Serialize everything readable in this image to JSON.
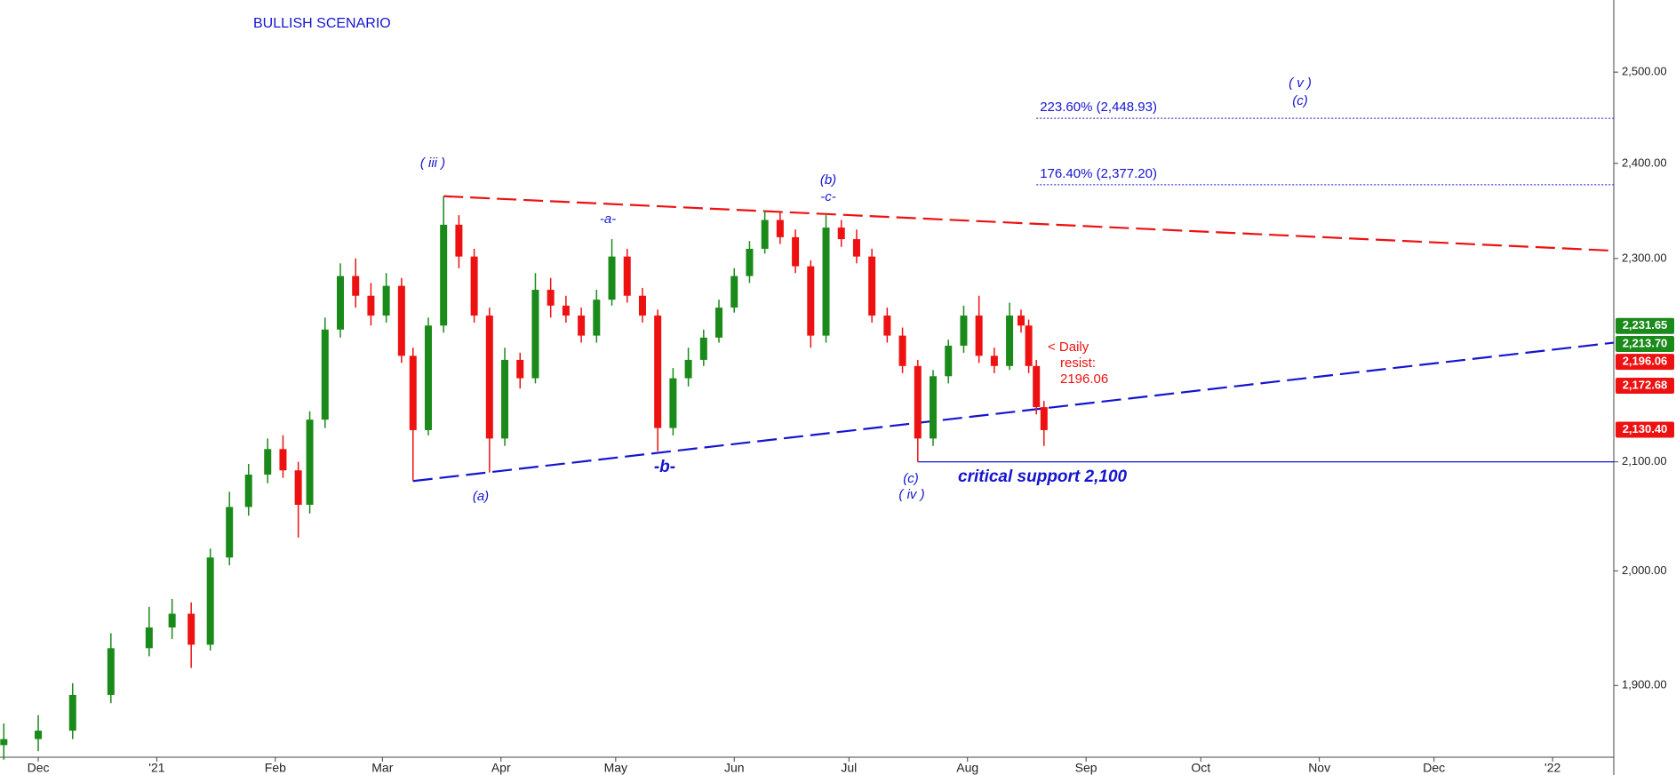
{
  "chart_data": {
    "type": "candlestick",
    "title": "BULLISH SCENARIO",
    "log_scale": true,
    "xlim": [
      -10,
      412
    ],
    "xticks": [
      {
        "value": 0,
        "label": "Dec"
      },
      {
        "value": 31,
        "label": "'21"
      },
      {
        "value": 62,
        "label": "Feb"
      },
      {
        "value": 90,
        "label": "Mar"
      },
      {
        "value": 121,
        "label": "Apr"
      },
      {
        "value": 151,
        "label": "May"
      },
      {
        "value": 182,
        "label": "Jun"
      },
      {
        "value": 212,
        "label": "Jul"
      },
      {
        "value": 243,
        "label": "Aug"
      },
      {
        "value": 274,
        "label": "Sep"
      },
      {
        "value": 304,
        "label": "Oct"
      },
      {
        "value": 335,
        "label": "Nov"
      },
      {
        "value": 365,
        "label": "Dec"
      },
      {
        "value": 396,
        "label": "'22"
      }
    ],
    "ylim": [
      1840,
      2582
    ],
    "yticks": [
      {
        "value": 1900,
        "label": "1,900.00"
      },
      {
        "value": 2000,
        "label": "2,000.00"
      },
      {
        "value": 2100,
        "label": "2,100.00"
      },
      {
        "value": 2300,
        "label": "2,300.00"
      },
      {
        "value": 2400,
        "label": "2,400.00"
      },
      {
        "value": 2500,
        "label": "2,500.00"
      }
    ],
    "up_color": "#1a8a1a",
    "down_color": "#ee1111",
    "x": [
      -9,
      0,
      9,
      19,
      29,
      35,
      40,
      45,
      50,
      55,
      60,
      64,
      68,
      71,
      75,
      79,
      83,
      87,
      91,
      95,
      98,
      102,
      106,
      110,
      114,
      118,
      122,
      126,
      130,
      134,
      138,
      142,
      146,
      150,
      154,
      158,
      162,
      166,
      170,
      174,
      178,
      182,
      186,
      190,
      194,
      198,
      202,
      206,
      210,
      214,
      218,
      222,
      226,
      230,
      234,
      238,
      242,
      246,
      250,
      254,
      257,
      259,
      261,
      263
    ],
    "open": [
      1850,
      1855,
      1862,
      1892,
      1932,
      1950,
      1962,
      1935,
      2012,
      2058,
      2088,
      2112,
      2092,
      2060,
      2140,
      2228,
      2282,
      2262,
      2242,
      2272,
      2202,
      2130,
      2232,
      2335,
      2302,
      2242,
      2122,
      2198,
      2180,
      2268,
      2252,
      2242,
      2222,
      2258,
      2302,
      2262,
      2242,
      2132,
      2180,
      2198,
      2220,
      2250,
      2282,
      2310,
      2340,
      2322,
      2292,
      2222,
      2332,
      2320,
      2302,
      2242,
      2222,
      2192,
      2122,
      2182,
      2212,
      2242,
      2202,
      2192,
      2242,
      2232,
      2192,
      2152
    ],
    "high": [
      1868,
      1875,
      1902,
      1945,
      1968,
      1975,
      1972,
      2020,
      2072,
      2098,
      2122,
      2125,
      2100,
      2148,
      2240,
      2295,
      2300,
      2275,
      2285,
      2280,
      2210,
      2240,
      2365,
      2345,
      2310,
      2250,
      2210,
      2205,
      2285,
      2280,
      2262,
      2250,
      2268,
      2320,
      2310,
      2270,
      2248,
      2190,
      2210,
      2228,
      2258,
      2290,
      2318,
      2350,
      2348,
      2330,
      2298,
      2345,
      2340,
      2330,
      2310,
      2250,
      2230,
      2198,
      2188,
      2218,
      2252,
      2262,
      2210,
      2255,
      2248,
      2238,
      2198,
      2158
    ],
    "low": [
      1838,
      1845,
      1855,
      1885,
      1925,
      1940,
      1915,
      1930,
      2005,
      2050,
      2080,
      2085,
      2030,
      2052,
      2132,
      2220,
      2250,
      2232,
      2235,
      2195,
      2082,
      2125,
      2225,
      2290,
      2235,
      2090,
      2115,
      2170,
      2175,
      2240,
      2235,
      2215,
      2215,
      2252,
      2255,
      2235,
      2110,
      2125,
      2172,
      2192,
      2215,
      2245,
      2275,
      2305,
      2315,
      2285,
      2210,
      2215,
      2312,
      2295,
      2235,
      2215,
      2185,
      2100,
      2115,
      2175,
      2205,
      2195,
      2185,
      2188,
      2225,
      2185,
      2145,
      2115
    ],
    "close": [
      1855,
      1862,
      1892,
      1932,
      1950,
      1962,
      1935,
      2012,
      2058,
      2088,
      2112,
      2092,
      2060,
      2140,
      2228,
      2282,
      2262,
      2242,
      2272,
      2202,
      2130,
      2232,
      2335,
      2302,
      2242,
      2122,
      2198,
      2180,
      2268,
      2252,
      2242,
      2222,
      2258,
      2302,
      2262,
      2242,
      2132,
      2180,
      2198,
      2220,
      2250,
      2282,
      2310,
      2340,
      2322,
      2292,
      2222,
      2332,
      2320,
      2302,
      2242,
      2222,
      2192,
      2122,
      2182,
      2212,
      2242,
      2202,
      2192,
      2242,
      2232,
      2192,
      2152,
      2130
    ],
    "trendlines": [
      {
        "x": [
          106,
          412
        ],
        "y": [
          2365,
          2308
        ],
        "color": "#ee1111",
        "style": "long-dash"
      },
      {
        "x": [
          98,
          412
        ],
        "y": [
          2082,
          2215
        ],
        "color": "#1515d0",
        "style": "long-dash"
      },
      {
        "x": [
          230,
          412
        ],
        "y": [
          2100,
          2100
        ],
        "color": "#1515d0",
        "style": "solid"
      }
    ],
    "fib_levels": [
      {
        "value": 2448.93,
        "label": "223.60% (2,448.93)",
        "from": 261
      },
      {
        "value": 2377.2,
        "label": "176.40% (2,377.20)",
        "from": 261
      }
    ],
    "price_tags": [
      {
        "value": 2231.65,
        "label": "2,231.65",
        "color": "#1a8a1a"
      },
      {
        "value": 2213.7,
        "label": "2,213.70",
        "color": "#1a8a1a"
      },
      {
        "value": 2196.06,
        "label": "2,196.06",
        "color": "#ee1111"
      },
      {
        "value": 2172.68,
        "label": "2,172.68",
        "color": "#ee1111"
      },
      {
        "value": 2130.4,
        "label": "2,130.40",
        "color": "#ee1111"
      }
    ],
    "annotations": [
      "( v )",
      "(c)",
      "( iii )",
      "-a-",
      "(b)",
      "-c-",
      "(a)",
      "-b-",
      "(c)",
      "( iv )",
      "critical support 2,100",
      "<  Daily",
      "resist:",
      "2196.06"
    ]
  }
}
